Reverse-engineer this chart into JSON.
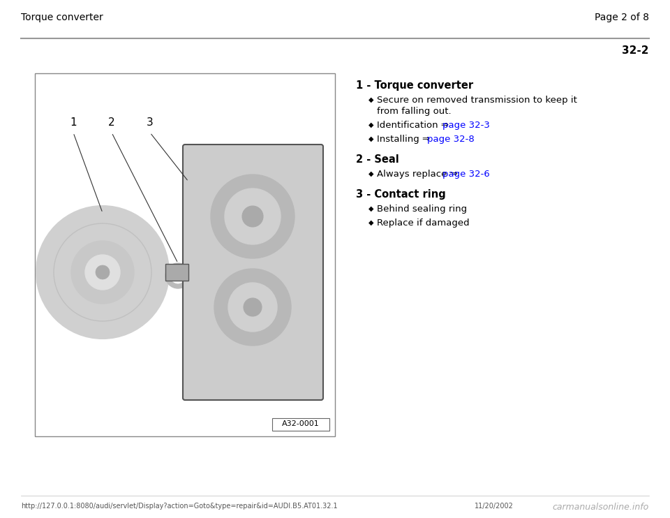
{
  "bg_color": "#ffffff",
  "header_left": "Torque converter",
  "header_right": "Page 2 of 8",
  "page_number": "32-2",
  "footer_url": "http://127.0.0.1:8080/audi/servlet/Display?action=Goto&type=repair&id=AUDI.B5.AT01.32.1",
  "footer_date": "11/20/2002",
  "footer_brand": "carmanualsonline.info",
  "diagram_label": "A32-0001",
  "items": [
    {
      "heading": "1 - Torque converter",
      "bullets": [
        {
          "text": "Secure on removed transmission to keep it\nfrom falling out.",
          "link": null
        },
        {
          "text": "Identification ⇒ ",
          "link": "page 32-3"
        },
        {
          "text": "Installing ⇒ ",
          "link": "page 32-8"
        }
      ]
    },
    {
      "heading": "2 - Seal",
      "bullets": [
        {
          "text": "Always replace ⇒ ",
          "link": "page 32-6"
        }
      ]
    },
    {
      "heading": "3 - Contact ring",
      "bullets": [
        {
          "text": "Behind sealing ring",
          "link": null
        },
        {
          "text": "Replace if damaged",
          "link": null
        }
      ]
    }
  ],
  "link_color": "#0000ff",
  "heading_color": "#000000",
  "text_color": "#000000",
  "header_color": "#000000",
  "separator_color": "#999999",
  "diagram_numbers": [
    "1",
    "2",
    "3"
  ]
}
